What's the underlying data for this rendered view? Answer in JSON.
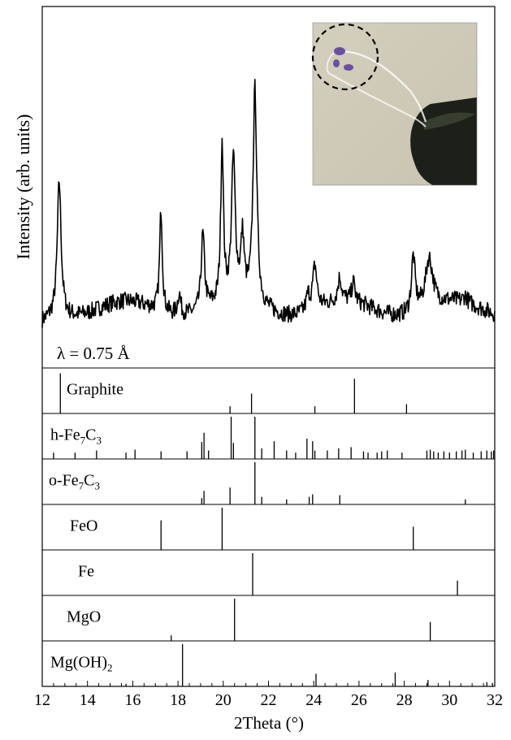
{
  "chart_data": {
    "type": "line",
    "xlabel": "2Theta (°)",
    "ylabel": "Intensity (arb. units)",
    "xlim": [
      12,
      32
    ],
    "x_ticks": [
      12,
      14,
      16,
      18,
      20,
      22,
      24,
      26,
      28,
      30,
      32
    ],
    "annotation": "λ = 0.75 Å",
    "pattern": {
      "baseline": 0.14,
      "noise": 0.035,
      "peaks": [
        {
          "pos": 12.75,
          "height": 0.62,
          "width": 0.1
        },
        {
          "pos": 17.25,
          "height": 0.48,
          "width": 0.07
        },
        {
          "pos": 18.05,
          "height": 0.1,
          "width": 0.08
        },
        {
          "pos": 19.1,
          "height": 0.35,
          "width": 0.09
        },
        {
          "pos": 19.95,
          "height": 0.74,
          "width": 0.07
        },
        {
          "pos": 20.45,
          "height": 0.66,
          "width": 0.1
        },
        {
          "pos": 20.85,
          "height": 0.28,
          "width": 0.09
        },
        {
          "pos": 21.4,
          "height": 1.0,
          "width": 0.1
        },
        {
          "pos": 23.75,
          "height": 0.07,
          "width": 0.1
        },
        {
          "pos": 24.05,
          "height": 0.2,
          "width": 0.11
        },
        {
          "pos": 25.15,
          "height": 0.11,
          "width": 0.1
        },
        {
          "pos": 25.75,
          "height": 0.09,
          "width": 0.09
        },
        {
          "pos": 28.4,
          "height": 0.26,
          "width": 0.1
        },
        {
          "pos": 29.1,
          "height": 0.23,
          "width": 0.2
        },
        {
          "pos": 30.7,
          "height": 0.03,
          "width": 0.1
        }
      ]
    },
    "reference_phases": [
      {
        "name": "Graphite",
        "lines": [
          {
            "x": 12.8,
            "h": 0.95
          },
          {
            "x": 20.3,
            "h": 0.17
          },
          {
            "x": 21.25,
            "h": 0.47
          },
          {
            "x": 24.05,
            "h": 0.17
          },
          {
            "x": 25.8,
            "h": 0.82
          },
          {
            "x": 28.1,
            "h": 0.22
          }
        ]
      },
      {
        "name": "h-Fe7C3",
        "formula": [
          "h-Fe",
          "7",
          "C",
          "3"
        ],
        "lines": [
          {
            "x": 12.5,
            "h": 0.15
          },
          {
            "x": 13.45,
            "h": 0.15
          },
          {
            "x": 14.4,
            "h": 0.2
          },
          {
            "x": 15.7,
            "h": 0.15
          },
          {
            "x": 16.1,
            "h": 0.22
          },
          {
            "x": 17.25,
            "h": 0.18
          },
          {
            "x": 18.4,
            "h": 0.18
          },
          {
            "x": 19.05,
            "h": 0.4
          },
          {
            "x": 19.15,
            "h": 0.62
          },
          {
            "x": 19.35,
            "h": 0.2
          },
          {
            "x": 20.35,
            "h": 1.0
          },
          {
            "x": 20.45,
            "h": 0.38
          },
          {
            "x": 21.4,
            "h": 1.0
          },
          {
            "x": 21.7,
            "h": 0.25
          },
          {
            "x": 22.25,
            "h": 0.42
          },
          {
            "x": 22.8,
            "h": 0.2
          },
          {
            "x": 23.2,
            "h": 0.15
          },
          {
            "x": 23.7,
            "h": 0.48
          },
          {
            "x": 23.95,
            "h": 0.42
          },
          {
            "x": 24.05,
            "h": 0.2
          },
          {
            "x": 24.6,
            "h": 0.2
          },
          {
            "x": 25.1,
            "h": 0.25
          },
          {
            "x": 25.65,
            "h": 0.28
          },
          {
            "x": 26.2,
            "h": 0.18
          },
          {
            "x": 26.4,
            "h": 0.15
          },
          {
            "x": 26.8,
            "h": 0.15
          },
          {
            "x": 27.0,
            "h": 0.18
          },
          {
            "x": 27.25,
            "h": 0.2
          },
          {
            "x": 27.9,
            "h": 0.15
          },
          {
            "x": 29.0,
            "h": 0.2
          },
          {
            "x": 29.15,
            "h": 0.22
          },
          {
            "x": 29.3,
            "h": 0.18
          },
          {
            "x": 29.5,
            "h": 0.15
          },
          {
            "x": 29.75,
            "h": 0.18
          },
          {
            "x": 30.0,
            "h": 0.15
          },
          {
            "x": 30.3,
            "h": 0.18
          },
          {
            "x": 30.55,
            "h": 0.2
          },
          {
            "x": 30.7,
            "h": 0.22
          },
          {
            "x": 31.05,
            "h": 0.15
          },
          {
            "x": 31.4,
            "h": 0.18
          },
          {
            "x": 31.65,
            "h": 0.2
          },
          {
            "x": 31.85,
            "h": 0.18
          },
          {
            "x": 31.95,
            "h": 0.2
          }
        ]
      },
      {
        "name": "o-Fe7C3",
        "formula": [
          "o-Fe",
          "7",
          "C",
          "3"
        ],
        "lines": [
          {
            "x": 19.05,
            "h": 0.15
          },
          {
            "x": 19.15,
            "h": 0.32
          },
          {
            "x": 20.3,
            "h": 0.4
          },
          {
            "x": 21.4,
            "h": 1.0
          },
          {
            "x": 21.7,
            "h": 0.18
          },
          {
            "x": 22.8,
            "h": 0.12
          },
          {
            "x": 23.8,
            "h": 0.18
          },
          {
            "x": 23.95,
            "h": 0.24
          },
          {
            "x": 25.15,
            "h": 0.22
          },
          {
            "x": 30.7,
            "h": 0.12
          }
        ]
      },
      {
        "name": "FeO",
        "lines": [
          {
            "x": 17.25,
            "h": 0.7
          },
          {
            "x": 19.95,
            "h": 1.0
          },
          {
            "x": 28.4,
            "h": 0.55
          }
        ]
      },
      {
        "name": "Fe",
        "lines": [
          {
            "x": 21.3,
            "h": 1.0
          },
          {
            "x": 30.35,
            "h": 0.35
          }
        ]
      },
      {
        "name": "MgO",
        "lines": [
          {
            "x": 17.7,
            "h": 0.13
          },
          {
            "x": 20.5,
            "h": 1.0
          },
          {
            "x": 29.15,
            "h": 0.45
          }
        ]
      },
      {
        "name": "Mg(OH)2",
        "formula": [
          "Mg(OH)",
          "2",
          "",
          ""
        ],
        "lines": [
          {
            "x": 15.7,
            "h": 0.06
          },
          {
            "x": 18.2,
            "h": 1.0
          },
          {
            "x": 24.1,
            "h": 0.3
          },
          {
            "x": 27.6,
            "h": 0.33
          },
          {
            "x": 29.05,
            "h": 0.15
          },
          {
            "x": 31.65,
            "h": 0.1
          },
          {
            "x": 31.9,
            "h": 0.08
          }
        ]
      }
    ],
    "inset": {
      "type": "photograph",
      "outline": "dashed-circle",
      "colors": {
        "background": "#c9c4b1",
        "sample": "#6b4fa0",
        "tool": "#1c2018"
      }
    }
  }
}
